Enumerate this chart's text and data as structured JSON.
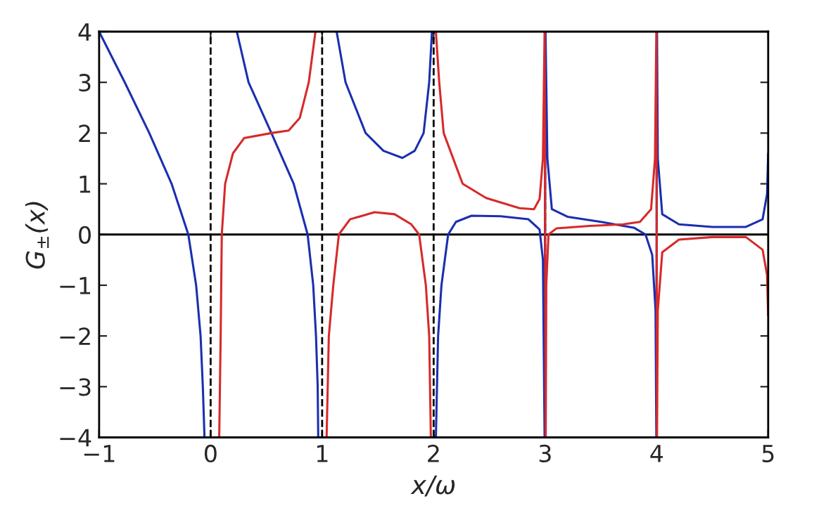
{
  "chart_data": {
    "type": "line",
    "xlabel": "x/ω",
    "ylabel": "G$_{±}$(x)",
    "xlim": [
      -1,
      5
    ],
    "ylim": [
      -4,
      4
    ],
    "xticks": [
      {
        "value": -1,
        "label": "−1"
      },
      0,
      1,
      2,
      3,
      4,
      5
    ],
    "yticks": [
      {
        "value": -4,
        "label": "−4"
      },
      {
        "value": -3,
        "label": "−3"
      },
      {
        "value": -2,
        "label": "−2"
      },
      {
        "value": -1,
        "label": "−1"
      },
      0,
      1,
      2,
      3,
      4
    ],
    "grid": false,
    "marker": "none",
    "line_style": "solid",
    "ref_lines": [
      {
        "axis": "y",
        "value": 0,
        "color": "#000000",
        "line_style": "solid"
      },
      {
        "axis": "x",
        "value": 0,
        "color": "#000000",
        "line_style": "dashed"
      },
      {
        "axis": "x",
        "value": 1,
        "color": "#000000",
        "line_style": "dashed"
      },
      {
        "axis": "x",
        "value": 2,
        "color": "#000000",
        "line_style": "dashed"
      },
      {
        "axis": "x",
        "value": 3,
        "color": "#000000",
        "line_style": "dashed"
      },
      {
        "axis": "x",
        "value": 4,
        "color": "#000000",
        "line_style": "dashed"
      }
    ],
    "series": [
      {
        "color": "#1a2fb0",
        "x": [
          -1,
          -0.77,
          -0.55,
          -0.35,
          -0.2,
          -0.13,
          -0.09,
          -0.07,
          -0.055,
          -0.03,
          0.235,
          0.34,
          0.545,
          0.745,
          0.87,
          0.92,
          0.945,
          0.96,
          0.965,
          1.05,
          1.13,
          1.21,
          1.39,
          1.55,
          1.72,
          1.83,
          1.91,
          1.96,
          1.985,
          2.0,
          2.02,
          2.04,
          2.07,
          2.13,
          2.2,
          2.34,
          2.6,
          2.85,
          2.95,
          2.98,
          2.995,
          3.003,
          3.02,
          3.06,
          3.2,
          3.5,
          3.8,
          3.9,
          3.96,
          3.99,
          3.997,
          4.003,
          4.01,
          4.05,
          4.2,
          4.5,
          4.8,
          4.95,
          4.99,
          5
        ],
        "values": [
          4,
          3,
          2,
          1,
          0,
          -1,
          -2,
          -3,
          -4,
          null,
          4,
          3,
          2,
          1,
          0,
          -1,
          -2,
          -3,
          -4,
          null,
          4,
          3,
          2,
          1.65,
          1.51,
          1.65,
          2,
          3,
          4,
          null,
          -4,
          -2,
          -1,
          0,
          0.25,
          0.37,
          0.36,
          0.3,
          0.1,
          -0.5,
          -4,
          4,
          1.5,
          0.5,
          0.35,
          0.25,
          0.13,
          0,
          -0.4,
          -1.5,
          -4,
          4,
          1.5,
          0.4,
          0.2,
          0.15,
          0.15,
          0.3,
          0.8,
          1.6
        ]
      },
      {
        "color": "#d62a2a",
        "x": [
          0.077,
          0.09,
          0.1,
          0.13,
          0.2,
          0.3,
          0.545,
          0.7,
          0.8,
          0.88,
          0.94,
          1.0,
          1.04,
          1.06,
          1.1,
          1.15,
          1.25,
          1.47,
          1.65,
          1.8,
          1.87,
          1.93,
          1.96,
          1.975,
          2.0,
          2.02,
          2.05,
          2.09,
          2.26,
          2.47,
          2.77,
          2.9,
          2.95,
          2.98,
          2.995,
          3.005,
          3.01,
          3.03,
          3.1,
          3.4,
          3.7,
          3.85,
          3.95,
          3.985,
          3.997,
          4.003,
          4.01,
          4.05,
          4.2,
          4.5,
          4.8,
          4.95,
          4.99,
          5
        ],
        "values": [
          -4,
          -2,
          0,
          1,
          1.6,
          1.9,
          2,
          2.05,
          2.3,
          3,
          4,
          null,
          -4,
          -2,
          -1,
          0,
          0.3,
          0.44,
          0.4,
          0.2,
          0,
          -1,
          -2,
          -4,
          null,
          4,
          3,
          2,
          1,
          0.72,
          0.52,
          0.5,
          0.7,
          1.5,
          4,
          -4,
          -1,
          0,
          0.12,
          0.17,
          0.2,
          0.25,
          0.5,
          1.5,
          4,
          -4,
          -1.5,
          -0.35,
          -0.1,
          -0.05,
          -0.05,
          -0.3,
          -0.8,
          -1.6
        ]
      }
    ]
  }
}
